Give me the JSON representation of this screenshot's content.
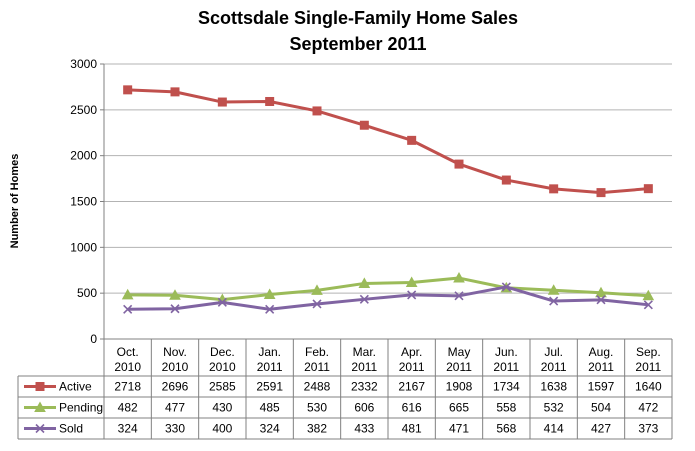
{
  "chart_data": {
    "type": "line",
    "title": [
      "Scottsdale Single-Family Home Sales",
      "September 2011"
    ],
    "ylabel": "Number of Homes",
    "xlabel": "",
    "ylim": [
      0,
      3000
    ],
    "yticks": [
      0,
      500,
      1000,
      1500,
      2000,
      2500,
      3000
    ],
    "grid": true,
    "legend": "table-left",
    "categories": [
      [
        "Oct.",
        "2010"
      ],
      [
        "Nov.",
        "2010"
      ],
      [
        "Dec.",
        "2010"
      ],
      [
        "Jan.",
        "2011"
      ],
      [
        "Feb.",
        "2011"
      ],
      [
        "Mar.",
        "2011"
      ],
      [
        "Apr.",
        "2011"
      ],
      [
        "May",
        "2011"
      ],
      [
        "Jun.",
        "2011"
      ],
      [
        "Jul.",
        "2011"
      ],
      [
        "Aug.",
        "2011"
      ],
      [
        "Sep.",
        "2011"
      ]
    ],
    "series": [
      {
        "name": "Active",
        "color": "#c0504d",
        "marker": "square",
        "values": [
          2718,
          2696,
          2585,
          2591,
          2488,
          2332,
          2167,
          1908,
          1734,
          1638,
          1597,
          1640
        ]
      },
      {
        "name": "Pending",
        "color": "#9bbb59",
        "marker": "triangle",
        "values": [
          482,
          477,
          430,
          485,
          530,
          606,
          616,
          665,
          558,
          532,
          504,
          472
        ]
      },
      {
        "name": "Sold",
        "color": "#8064a2",
        "marker": "x",
        "values": [
          324,
          330,
          400,
          324,
          382,
          433,
          481,
          471,
          568,
          414,
          427,
          373
        ]
      }
    ]
  }
}
